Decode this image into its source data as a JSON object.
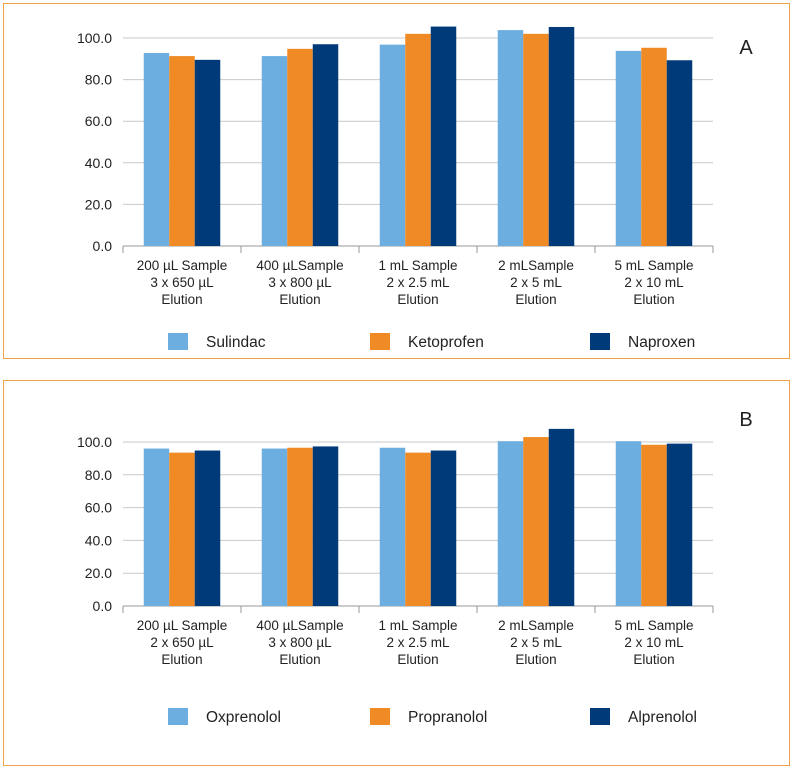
{
  "chart_data": [
    {
      "panel": "A",
      "type": "bar",
      "panel_label": "A",
      "categories": [
        [
          "200 µL Sample",
          "3 x 650 µL",
          "Elution"
        ],
        [
          "400 µLSample",
          "3 x 800 µL",
          "Elution"
        ],
        [
          "1 mL Sample",
          "2 x 2.5 mL",
          "Elution"
        ],
        [
          "2 mLSample",
          "2 x 5 mL",
          "Elution"
        ],
        [
          "5 mL Sample",
          "2 x 10 mL",
          "Elution"
        ]
      ],
      "series": [
        {
          "name": "Sulindac",
          "color": "#6daee0",
          "values": [
            92.8,
            91.3,
            96.8,
            103.8,
            93.8
          ]
        },
        {
          "name": "Ketoprofen",
          "color": "#f08a24",
          "values": [
            91.3,
            94.8,
            102.0,
            102.0,
            95.3
          ]
        },
        {
          "name": "Naproxen",
          "color": "#003a78",
          "values": [
            89.5,
            97.0,
            105.5,
            105.3,
            89.3
          ]
        }
      ],
      "yticks": [
        "0.0",
        "20.0",
        "40.0",
        "60.0",
        "80.0",
        "100.0"
      ],
      "ylim": [
        0,
        100
      ],
      "grid": true,
      "legend_position": "bottom"
    },
    {
      "panel": "B",
      "type": "bar",
      "panel_label": "B",
      "categories": [
        [
          "200 µL Sample",
          "2 x 650 µL",
          "Elution"
        ],
        [
          "400 µLSample",
          "3 x 800 µL",
          "Elution"
        ],
        [
          "1 mL Sample",
          "2 x 2.5 mL",
          "Elution"
        ],
        [
          "2 mLSample",
          "2 x 5 mL",
          "Elution"
        ],
        [
          "5 mL Sample",
          "2 x 10 mL",
          "Elution"
        ]
      ],
      "series": [
        {
          "name": "Oxprenolol",
          "color": "#6daee0",
          "values": [
            96.0,
            96.0,
            96.5,
            100.5,
            100.5
          ]
        },
        {
          "name": "Propranolol",
          "color": "#f08a24",
          "values": [
            93.5,
            96.5,
            93.5,
            103.0,
            98.3
          ]
        },
        {
          "name": "Alprenolol",
          "color": "#003a78",
          "values": [
            94.8,
            97.3,
            94.8,
            108.0,
            99.0
          ]
        }
      ],
      "yticks": [
        "0.0",
        "20.0",
        "40.0",
        "60.0",
        "80.0",
        "100.0"
      ],
      "ylim": [
        0,
        100
      ],
      "grid": true,
      "legend_position": "bottom"
    }
  ]
}
